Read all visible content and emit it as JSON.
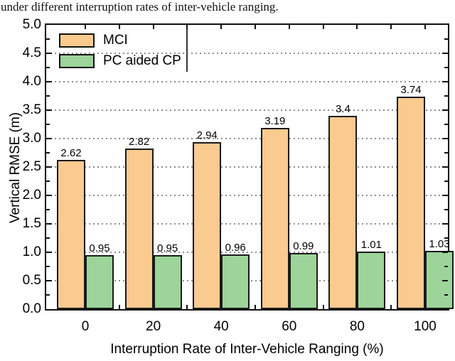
{
  "caption": "under different interruption rates of inter-vehicle ranging.",
  "colors": {
    "mci_fill": "#FBCA8E",
    "pc_cp_fill": "#9CD49A",
    "bar_border": "#1a1a1a",
    "grid": "#8e8e8e",
    "axis": "#111111",
    "background": "#ffffff"
  },
  "legend": {
    "items": [
      {
        "label": "MCI",
        "color": "#FBCA8E"
      },
      {
        "label": "PC aided CP",
        "color": "#9CD49A"
      }
    ]
  },
  "chart_data": {
    "type": "bar",
    "title": "",
    "xlabel": "Interruption Rate of Inter-Vehicle Ranging (%)",
    "ylabel": "Vertical RMSE (m)",
    "categories": [
      "0",
      "20",
      "40",
      "60",
      "80",
      "100"
    ],
    "series": [
      {
        "name": "MCI",
        "color": "#FBCA8E",
        "values": [
          2.62,
          2.82,
          2.94,
          3.19,
          3.4,
          3.74
        ]
      },
      {
        "name": "PC aided CP",
        "color": "#9CD49A",
        "values": [
          0.95,
          0.95,
          0.96,
          0.99,
          1.01,
          1.03
        ]
      }
    ],
    "ylim": [
      0,
      5
    ],
    "ytick_step": 0.5,
    "ytick_minor_step": 0.25,
    "yticks": [
      "0.0",
      "0.5",
      "1.0",
      "1.5",
      "2.0",
      "2.5",
      "3.0",
      "3.5",
      "4.0",
      "4.5",
      "5.0"
    ],
    "grid": "dotted horizontal lines at major y ticks",
    "legend_position": "top-left inside plot",
    "bar_value_labels": true
  }
}
